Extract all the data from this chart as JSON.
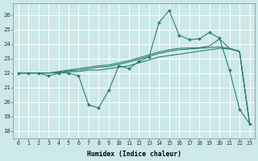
{
  "xlabel": "Humidex (Indice chaleur)",
  "bg_color": "#cce8e8",
  "grid_color": "#ffffff",
  "line_color": "#2d7d78",
  "xlim": [
    -0.5,
    23.5
  ],
  "ylim": [
    17.5,
    26.8
  ],
  "yticks": [
    18,
    19,
    20,
    21,
    22,
    23,
    24,
    25,
    26
  ],
  "xticks": [
    0,
    1,
    2,
    3,
    4,
    5,
    6,
    7,
    8,
    9,
    10,
    11,
    12,
    13,
    14,
    15,
    16,
    17,
    18,
    19,
    20,
    21,
    22,
    23
  ],
  "series": [
    {
      "y": [
        22.0,
        22.0,
        22.0,
        21.8,
        22.0,
        22.0,
        21.8,
        19.8,
        19.6,
        20.8,
        22.5,
        22.3,
        22.8,
        23.1,
        25.5,
        26.3,
        24.6,
        24.3,
        24.35,
        24.8,
        24.4,
        22.2,
        19.5,
        18.5
      ],
      "marker": true
    },
    {
      "y": [
        22.0,
        22.0,
        22.0,
        22.0,
        22.0,
        22.1,
        22.1,
        22.2,
        22.2,
        22.3,
        22.4,
        22.5,
        22.7,
        22.9,
        23.1,
        23.2,
        23.3,
        23.4,
        23.5,
        23.6,
        23.7,
        23.65,
        23.5,
        18.5
      ],
      "marker": false
    },
    {
      "y": [
        22.0,
        22.0,
        22.0,
        22.0,
        22.05,
        22.15,
        22.2,
        22.3,
        22.4,
        22.45,
        22.6,
        22.75,
        22.95,
        23.15,
        23.35,
        23.5,
        23.6,
        23.65,
        23.7,
        23.75,
        23.8,
        23.7,
        23.5,
        18.5
      ],
      "marker": false
    },
    {
      "y": [
        22.0,
        22.0,
        22.0,
        22.0,
        22.1,
        22.2,
        22.3,
        22.4,
        22.5,
        22.55,
        22.7,
        22.85,
        23.05,
        23.25,
        23.45,
        23.6,
        23.7,
        23.72,
        23.75,
        23.85,
        24.35,
        23.7,
        23.45,
        18.5
      ],
      "marker": false
    }
  ]
}
